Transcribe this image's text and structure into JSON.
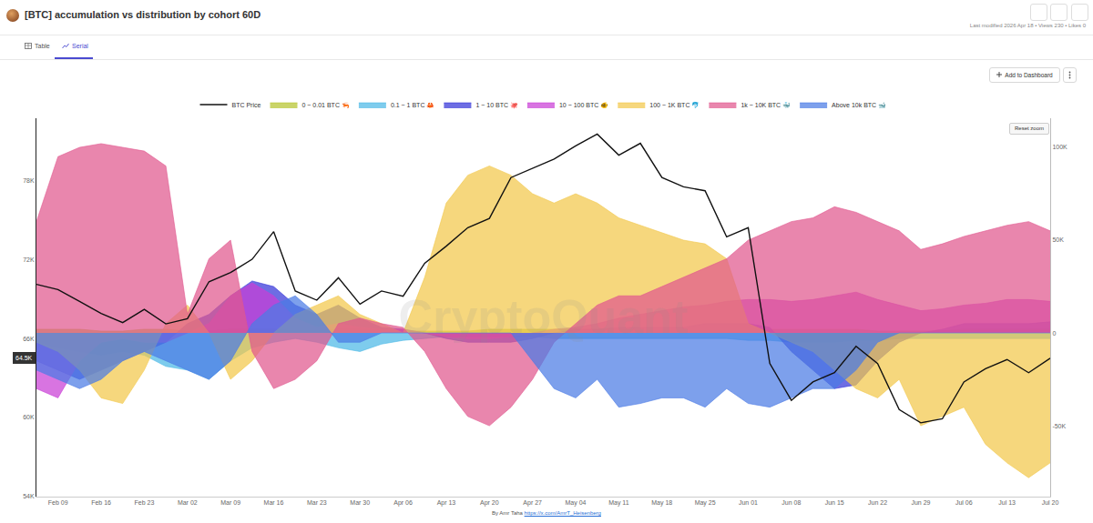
{
  "page": {
    "meta": "Last modified 2026 Apr 18 • Views 230 • Likes 0",
    "tabs": [
      "Table",
      "Serial"
    ],
    "active_tab": "Serial",
    "button": "Add to Dashboard",
    "reset_button": "Reset zoom",
    "credit": "By Amr Taha",
    "credit_link": "https://x.com/AmrT_Heisenberg",
    "watermark": "CryptoQuant"
  },
  "chart_data": {
    "type": "area",
    "title": "[BTC] accumulation vs distribution by cohort 60D",
    "categories": [
      null,
      "Feb 09",
      null,
      "Feb 16",
      null,
      "Feb 23",
      null,
      "Mar 02",
      null,
      "Mar 09",
      null,
      "Mar 16",
      null,
      "Mar 23",
      null,
      "Mar 30",
      null,
      "Apr 06",
      null,
      "Apr 13",
      null,
      "Apr 20",
      null,
      "Apr 27",
      null,
      "May 04",
      null,
      "May 11",
      null,
      "May 18",
      null,
      "May 25",
      null,
      "Jun 01",
      null,
      "Jun 08",
      null,
      "Jun 15",
      null,
      "Jun 22",
      null,
      "Jun 29",
      null,
      "Jul 06",
      null,
      "Jul 13",
      null,
      "Jul 20"
    ],
    "ylim": [
      54000,
      82700
    ],
    "yticks": [
      {
        "value": 54000,
        "label": "54K"
      },
      {
        "value": 60000,
        "label": "60K"
      },
      {
        "value": 66000,
        "label": "66K"
      },
      {
        "value": 72000,
        "label": "72K"
      },
      {
        "value": 78000,
        "label": "78K"
      }
    ],
    "y2lim": [
      -88200,
      115700
    ],
    "y2ticks": [
      {
        "value": -50000,
        "label": "-50K"
      },
      0,
      {
        "value": 50000,
        "label": "50K"
      },
      {
        "value": 100000,
        "label": "100K"
      }
    ],
    "grid": false,
    "legend": "top",
    "annotations": [
      {
        "text": "64.5K",
        "y": 64500
      }
    ],
    "series": [
      {
        "name": "BTC Price",
        "type": "line",
        "color": "#111111",
        "values": [
          70100,
          69700,
          68800,
          67900,
          67200,
          68200,
          67100,
          67500,
          70300,
          71000,
          72000,
          74100,
          69600,
          68900,
          70600,
          68600,
          69600,
          69200,
          71700,
          73000,
          74400,
          75100,
          78200,
          78900,
          79600,
          80600,
          81500,
          79900,
          80800,
          78200,
          77500,
          77200,
          73700,
          74400,
          64100,
          61300,
          62700,
          63400,
          65400,
          64100,
          60600,
          59600,
          59900,
          62700,
          63700,
          64400,
          63400,
          64500
        ]
      },
      {
        "name": "0 ~ 0.01 BTC 🦐",
        "type": "area",
        "axis": "y2",
        "color": "#b5c42e",
        "values": [
          2000,
          2000,
          2000,
          1000,
          1000,
          2000,
          2000,
          1000,
          1000,
          2000,
          2000,
          2000,
          1000,
          1000,
          2000,
          2000,
          2000,
          1000,
          1000,
          1000,
          1000,
          2000,
          2000,
          2000,
          2000,
          2000,
          2000,
          2000,
          1000,
          1000,
          1000,
          1000,
          1000,
          1000,
          2000,
          2000,
          2000,
          2000,
          2000,
          1000,
          1000,
          1000,
          1000,
          2000,
          2000,
          2000,
          2000,
          2000
        ]
      },
      {
        "name": "0.1 ~ 1 BTC 🦀",
        "type": "area",
        "axis": "y2",
        "color": "#4cb8e6",
        "values": [
          -5000,
          -8000,
          -10000,
          -12000,
          -10000,
          -12000,
          -18000,
          -20000,
          -25000,
          -15000,
          -8000,
          -5000,
          -3000,
          -5000,
          -8000,
          -10000,
          -6000,
          -4000,
          -3000,
          -2000,
          -2000,
          -2000,
          -2000,
          -2000,
          -3000,
          -3000,
          -3000,
          -3000,
          -3000,
          -3000,
          -3000,
          -3000,
          -3000,
          -4000,
          -4000,
          -5000,
          -5000,
          -5000,
          -4000,
          -4000,
          -3000,
          -3000,
          -3000,
          -3000,
          -3000,
          -3000,
          -3000,
          -3000
        ]
      },
      {
        "name": "1 ~ 10 BTC 🐙",
        "type": "area",
        "axis": "y2",
        "color": "#3535d8",
        "values": [
          -15000,
          -20000,
          -25000,
          -20000,
          -15000,
          -10000,
          -5000,
          5000,
          10000,
          20000,
          28000,
          25000,
          15000,
          10000,
          15000,
          8000,
          3000,
          2000,
          0,
          -3000,
          -5000,
          -5000,
          -5000,
          -3000,
          0,
          2000,
          2000,
          3000,
          3000,
          3000,
          3000,
          5000,
          5000,
          5000,
          3000,
          -10000,
          -20000,
          -30000,
          -28000,
          -15000,
          -5000,
          0,
          2000,
          5000,
          5000,
          5000,
          5000,
          6000
        ]
      },
      {
        "name": "10 ~ 100 BTC 🐠",
        "type": "area",
        "axis": "y2",
        "color": "#c93fd6",
        "values": [
          -30000,
          -35000,
          -15000,
          -5000,
          -3000,
          -5000,
          -5000,
          0,
          5000,
          20000,
          27000,
          20000,
          8000,
          3000,
          5000,
          3000,
          2000,
          2000,
          0,
          -2000,
          -3000,
          -3000,
          -2000,
          0,
          2000,
          3000,
          5000,
          8000,
          10000,
          12000,
          14000,
          15000,
          17000,
          18000,
          18000,
          17000,
          18000,
          20000,
          22000,
          18000,
          15000,
          12000,
          13000,
          15000,
          16000,
          18000,
          18000,
          17000
        ]
      },
      {
        "name": "100 ~ 1K BTC 🐬",
        "type": "area",
        "axis": "y2",
        "color": "#f2c84b",
        "values": [
          -5000,
          -10000,
          -20000,
          -35000,
          -38000,
          -20000,
          5000,
          15000,
          0,
          -25000,
          -15000,
          0,
          10000,
          15000,
          20000,
          10000,
          5000,
          0,
          30000,
          70000,
          85000,
          90000,
          85000,
          75000,
          70000,
          75000,
          70000,
          62000,
          58000,
          54000,
          50000,
          48000,
          40000,
          5000,
          0,
          -5000,
          -10000,
          -20000,
          -30000,
          -35000,
          -25000,
          -50000,
          -45000,
          -40000,
          -60000,
          -70000,
          -78000,
          -70000
        ]
      },
      {
        "name": "1k ~ 10K BTC 🐳",
        "type": "area",
        "axis": "y2",
        "color": "#e0578e",
        "values": [
          60000,
          95000,
          100000,
          102000,
          100000,
          98000,
          90000,
          10000,
          40000,
          50000,
          -10000,
          -30000,
          -25000,
          -15000,
          5000,
          8000,
          5000,
          3000,
          -10000,
          -30000,
          -45000,
          -50000,
          -40000,
          -25000,
          -5000,
          5000,
          15000,
          20000,
          20000,
          25000,
          30000,
          35000,
          40000,
          50000,
          55000,
          60000,
          62000,
          68000,
          65000,
          60000,
          55000,
          45000,
          48000,
          52000,
          55000,
          58000,
          60000,
          55000
        ]
      },
      {
        "name": "Above 10k BTC 🐋",
        "type": "area",
        "axis": "y2",
        "color": "#4b7be5",
        "values": [
          -20000,
          -25000,
          -30000,
          -25000,
          -15000,
          -10000,
          -15000,
          -20000,
          -25000,
          -15000,
          5000,
          15000,
          20000,
          10000,
          -5000,
          -5000,
          0,
          0,
          0,
          0,
          0,
          0,
          0,
          -15000,
          -30000,
          -35000,
          -25000,
          -40000,
          -38000,
          -35000,
          -35000,
          -40000,
          -30000,
          -38000,
          -40000,
          -35000,
          -30000,
          -30000,
          -20000,
          -5000,
          0,
          0,
          0,
          0,
          0,
          0,
          0,
          0
        ]
      }
    ]
  }
}
